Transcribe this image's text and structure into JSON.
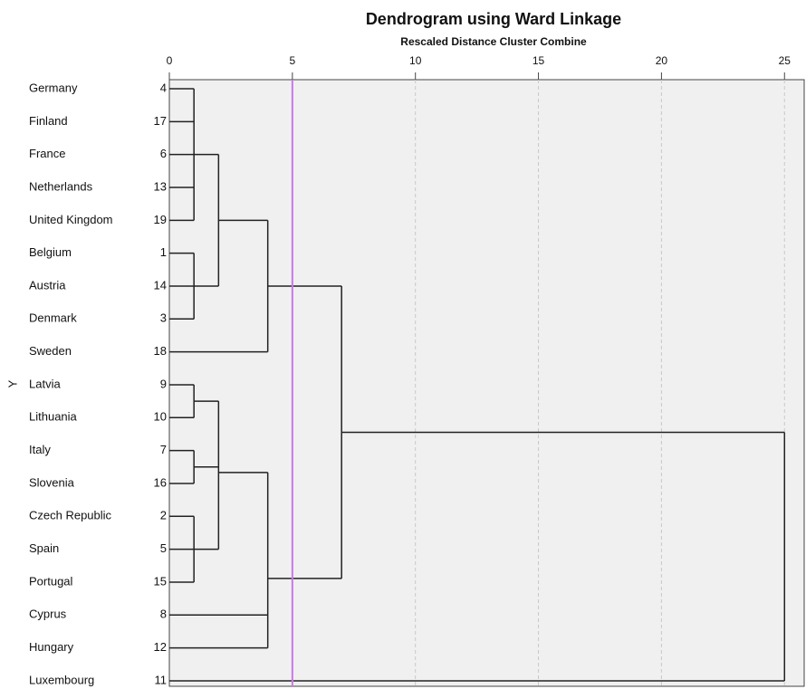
{
  "chart_data": {
    "type": "dendrogram",
    "title": "Dendrogram using Ward Linkage",
    "subtitle": "Rescaled Distance Cluster Combine",
    "ylabel": "Y",
    "xlim": [
      0,
      25.8
    ],
    "xticks": [
      0,
      5,
      10,
      15,
      20,
      25
    ],
    "grid": true,
    "line_color": "#222222",
    "cut_line": {
      "value": 5,
      "color": "#cc77e8"
    },
    "leaves": [
      {
        "label": "Germany",
        "case": 4
      },
      {
        "label": "Finland",
        "case": 17
      },
      {
        "label": "France",
        "case": 6
      },
      {
        "label": "Netherlands",
        "case": 13
      },
      {
        "label": "United Kingdom",
        "case": 19
      },
      {
        "label": "Belgium",
        "case": 1
      },
      {
        "label": "Austria",
        "case": 14
      },
      {
        "label": "Denmark",
        "case": 3
      },
      {
        "label": "Sweden",
        "case": 18
      },
      {
        "label": "Latvia",
        "case": 9
      },
      {
        "label": "Lithuania",
        "case": 10
      },
      {
        "label": "Italy",
        "case": 7
      },
      {
        "label": "Slovenia",
        "case": 16
      },
      {
        "label": "Czech Republic",
        "case": 2
      },
      {
        "label": "Spain",
        "case": 5
      },
      {
        "label": "Portugal",
        "case": 15
      },
      {
        "label": "Cyprus",
        "case": 8
      },
      {
        "label": "Hungary",
        "case": 12
      },
      {
        "label": "Luxembourg",
        "case": 11
      }
    ],
    "tree": {
      "distance": 25,
      "children": [
        {
          "distance": 7,
          "children": [
            {
              "distance": 4,
              "children": [
                {
                  "distance": 2,
                  "children": [
                    {
                      "distance": 1,
                      "children": [
                        0,
                        1,
                        2,
                        3,
                        4
                      ]
                    },
                    {
                      "distance": 1,
                      "children": [
                        5,
                        6,
                        7
                      ]
                    }
                  ]
                },
                8
              ]
            },
            {
              "distance": 4,
              "children": [
                {
                  "distance": 2,
                  "children": [
                    {
                      "distance": 1,
                      "children": [
                        9,
                        10
                      ]
                    },
                    {
                      "distance": 1,
                      "children": [
                        11,
                        12
                      ]
                    },
                    {
                      "distance": 1,
                      "children": [
                        13,
                        14,
                        15
                      ]
                    }
                  ]
                },
                16,
                17
              ]
            }
          ]
        },
        18
      ]
    }
  }
}
